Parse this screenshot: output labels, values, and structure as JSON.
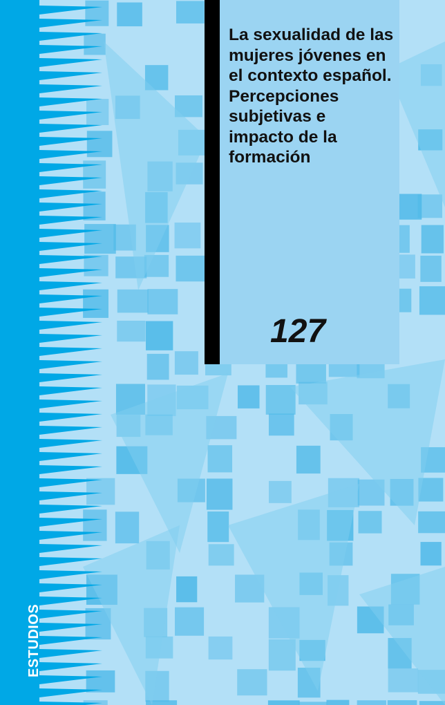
{
  "cover": {
    "title": "La sexualidad de las mujeres jóvenes en el contexto español. Percepciones subjetivas e impacto de la formación",
    "number": "127",
    "series": "ESTUDIOS"
  },
  "colors": {
    "spine_band": "#00a8e6",
    "background": "#b3e0f7",
    "collage": "#4fb9e8",
    "title_box": "#9bd4f2",
    "accent_bar": "#000000"
  }
}
